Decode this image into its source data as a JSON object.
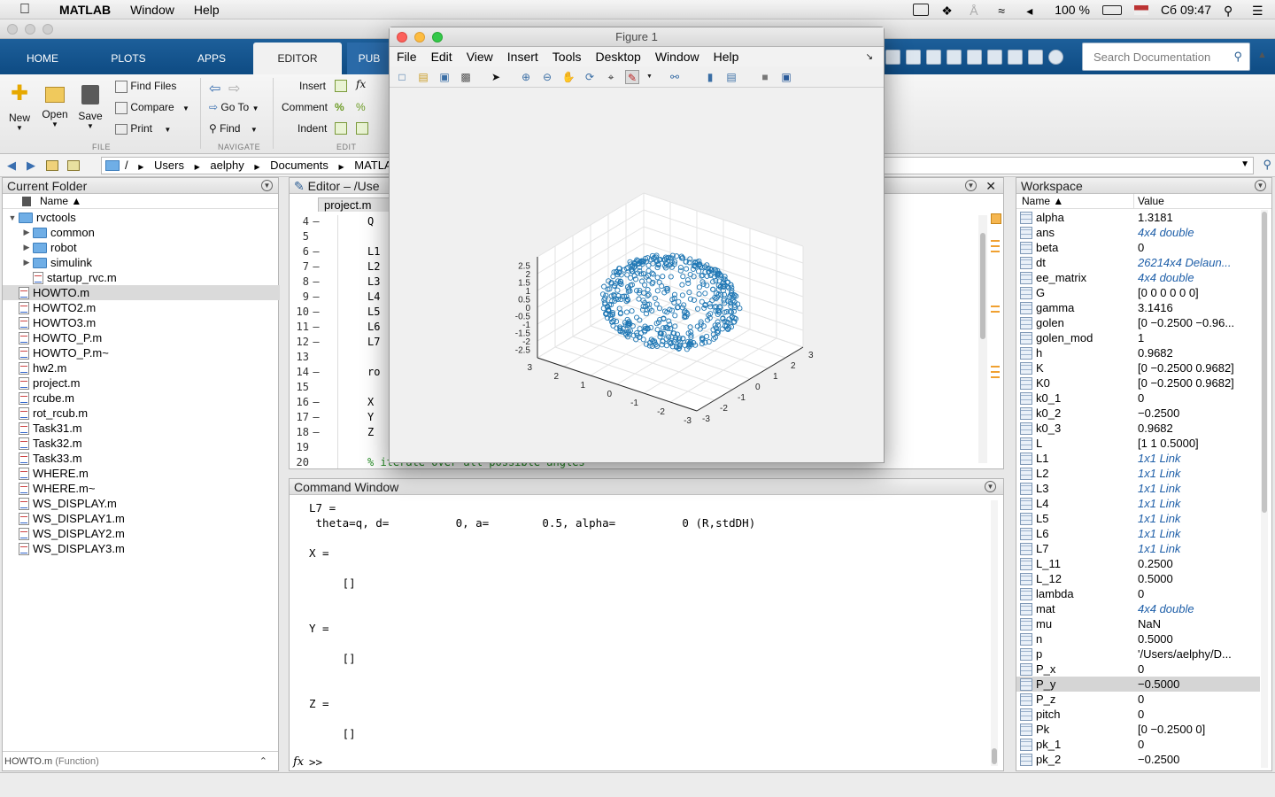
{
  "menubar": {
    "app": "MATLAB",
    "items": [
      "Window",
      "Help"
    ],
    "battery": "100 %",
    "clock": "Сб 09:47"
  },
  "toolstrip": {
    "tabs": [
      "HOME",
      "PLOTS",
      "APPS",
      "EDITOR",
      "PUB"
    ],
    "active_tab": "EDITOR",
    "file": {
      "new": "New",
      "open": "Open",
      "save": "Save",
      "find_files": "Find Files",
      "compare": "Compare",
      "print": "Print",
      "label": "FILE"
    },
    "navigate": {
      "goto": "Go To",
      "find": "Find",
      "label": "NAVIGATE"
    },
    "edit": {
      "insert": "Insert",
      "comment": "Comment",
      "indent": "Indent",
      "label": "EDIT"
    },
    "search_placeholder": "Search Documentation"
  },
  "address": {
    "crumbs": [
      "/",
      "Users",
      "aelphy",
      "Documents",
      "MATLAB"
    ]
  },
  "current_folder": {
    "title": "Current Folder",
    "column": "Name ▲",
    "items": [
      {
        "name": "rvctools",
        "kind": "folder",
        "indent": 0,
        "expanded": true
      },
      {
        "name": "common",
        "kind": "folder",
        "indent": 1
      },
      {
        "name": "robot",
        "kind": "folder",
        "indent": 1
      },
      {
        "name": "simulink",
        "kind": "folder",
        "indent": 1
      },
      {
        "name": "startup_rvc.m",
        "kind": "file",
        "indent": 1
      },
      {
        "name": "HOWTO.m",
        "kind": "file",
        "indent": 0,
        "selected": true
      },
      {
        "name": "HOWTO2.m",
        "kind": "file",
        "indent": 0
      },
      {
        "name": "HOWTO3.m",
        "kind": "file",
        "indent": 0
      },
      {
        "name": "HOWTO_P.m",
        "kind": "file",
        "indent": 0
      },
      {
        "name": "HOWTO_P.m~",
        "kind": "file",
        "indent": 0
      },
      {
        "name": "hw2.m",
        "kind": "file",
        "indent": 0
      },
      {
        "name": "project.m",
        "kind": "file",
        "indent": 0
      },
      {
        "name": "rcube.m",
        "kind": "file",
        "indent": 0
      },
      {
        "name": "rot_rcub.m",
        "kind": "file",
        "indent": 0
      },
      {
        "name": "Task31.m",
        "kind": "file",
        "indent": 0
      },
      {
        "name": "Task32.m",
        "kind": "file",
        "indent": 0
      },
      {
        "name": "Task33.m",
        "kind": "file",
        "indent": 0
      },
      {
        "name": "WHERE.m",
        "kind": "file",
        "indent": 0
      },
      {
        "name": "WHERE.m~",
        "kind": "file",
        "indent": 0
      },
      {
        "name": "WS_DISPLAY.m",
        "kind": "file",
        "indent": 0
      },
      {
        "name": "WS_DISPLAY1.m",
        "kind": "file",
        "indent": 0
      },
      {
        "name": "WS_DISPLAY2.m",
        "kind": "file",
        "indent": 0
      },
      {
        "name": "WS_DISPLAY3.m",
        "kind": "file",
        "indent": 0
      }
    ],
    "details": "HOWTO.m",
    "details_kind": "(Function)"
  },
  "editor": {
    "title": "Editor – /Use",
    "tab": "project.m",
    "lines": [
      {
        "n": "4",
        "dash": "–",
        "code": "Q"
      },
      {
        "n": "5",
        "dash": "",
        "code": ""
      },
      {
        "n": "6",
        "dash": "–",
        "code": "L1"
      },
      {
        "n": "7",
        "dash": "–",
        "code": "L2"
      },
      {
        "n": "8",
        "dash": "–",
        "code": "L3"
      },
      {
        "n": "9",
        "dash": "–",
        "code": "L4"
      },
      {
        "n": "10",
        "dash": "–",
        "code": "L5"
      },
      {
        "n": "11",
        "dash": "–",
        "code": "L6"
      },
      {
        "n": "12",
        "dash": "–",
        "code": "L7"
      },
      {
        "n": "13",
        "dash": "",
        "code": ""
      },
      {
        "n": "14",
        "dash": "–",
        "code": "ro"
      },
      {
        "n": "15",
        "dash": "",
        "code": ""
      },
      {
        "n": "16",
        "dash": "–",
        "code": "X"
      },
      {
        "n": "17",
        "dash": "–",
        "code": "Y"
      },
      {
        "n": "18",
        "dash": "–",
        "code": "Z"
      },
      {
        "n": "19",
        "dash": "",
        "code": ""
      },
      {
        "n": "20",
        "dash": "",
        "code": "% iterate over all possible angles"
      }
    ]
  },
  "command_window": {
    "title": "Command Window",
    "text": "L7 =\n theta=q, d=          0, a=        0.5, alpha=          0 (R,stdDH)\n\nX =\n\n     []\n\n\nY =\n\n     []\n\n\nZ =\n\n     []",
    "prompt": ">>"
  },
  "workspace": {
    "title": "Workspace",
    "columns": [
      "Name ▲",
      "Value"
    ],
    "rows": [
      {
        "name": "alpha",
        "value": "1.3181"
      },
      {
        "name": "ans",
        "value": "4x4 double",
        "italic": true
      },
      {
        "name": "beta",
        "value": "0"
      },
      {
        "name": "dt",
        "value": "26214x4 Delaun...",
        "italic": true
      },
      {
        "name": "ee_matrix",
        "value": "4x4 double",
        "italic": true
      },
      {
        "name": "G",
        "value": "[0 0 0 0 0 0]"
      },
      {
        "name": "gamma",
        "value": "3.1416"
      },
      {
        "name": "golen",
        "value": "[0 −0.2500 −0.96..."
      },
      {
        "name": "golen_mod",
        "value": "1"
      },
      {
        "name": "h",
        "value": "0.9682"
      },
      {
        "name": "K",
        "value": "[0 −0.2500 0.9682]"
      },
      {
        "name": "K0",
        "value": "[0 −0.2500 0.9682]"
      },
      {
        "name": "k0_1",
        "value": "0"
      },
      {
        "name": "k0_2",
        "value": "−0.2500"
      },
      {
        "name": "k0_3",
        "value": "0.9682"
      },
      {
        "name": "L",
        "value": "[1 1 0.5000]"
      },
      {
        "name": "L1",
        "value": "1x1 Link",
        "italic": true
      },
      {
        "name": "L2",
        "value": "1x1 Link",
        "italic": true
      },
      {
        "name": "L3",
        "value": "1x1 Link",
        "italic": true
      },
      {
        "name": "L4",
        "value": "1x1 Link",
        "italic": true
      },
      {
        "name": "L5",
        "value": "1x1 Link",
        "italic": true
      },
      {
        "name": "L6",
        "value": "1x1 Link",
        "italic": true
      },
      {
        "name": "L7",
        "value": "1x1 Link",
        "italic": true
      },
      {
        "name": "L_11",
        "value": "0.2500"
      },
      {
        "name": "L_12",
        "value": "0.5000"
      },
      {
        "name": "lambda",
        "value": "0"
      },
      {
        "name": "mat",
        "value": "4x4 double",
        "italic": true
      },
      {
        "name": "mu",
        "value": "NaN"
      },
      {
        "name": "n",
        "value": "0.5000"
      },
      {
        "name": "p",
        "value": "'/Users/aelphy/D..."
      },
      {
        "name": "P_x",
        "value": "0"
      },
      {
        "name": "P_y",
        "value": "−0.5000",
        "selected": true
      },
      {
        "name": "P_z",
        "value": "0"
      },
      {
        "name": "pitch",
        "value": "0"
      },
      {
        "name": "Pk",
        "value": "[0 −0.2500 0]"
      },
      {
        "name": "pk_1",
        "value": "0"
      },
      {
        "name": "pk_2",
        "value": "−0.2500"
      }
    ]
  },
  "figure": {
    "title": "Figure 1",
    "menu": [
      "File",
      "Edit",
      "View",
      "Insert",
      "Tools",
      "Desktop",
      "Window",
      "Help"
    ],
    "tools": [
      "new-figure",
      "open",
      "save",
      "print",
      "pointer",
      "zoom-in",
      "zoom-out",
      "pan",
      "rotate",
      "data-cursor",
      "brush",
      "link",
      "colorbar",
      "legend",
      "hide-tools",
      "show-tools"
    ],
    "marker_color": "#1f77b4"
  },
  "chart_data": {
    "type": "scatter",
    "subtype": "scatter3",
    "grid": true,
    "zlim": [
      -3,
      3
    ],
    "zticks": [
      "2.5",
      "2",
      "1.5",
      "1",
      "0.5",
      "0",
      "-0.5",
      "-1",
      "-1.5",
      "-2",
      "-2.5",
      "3"
    ],
    "xticks_left": [
      "3",
      "2",
      "1",
      "0",
      "-1",
      "-2",
      "-3"
    ],
    "xticks_right": [
      "-3",
      "-2",
      "-1",
      "0",
      "1",
      "2",
      "3"
    ],
    "description_note": "",
    "point_count": 520
  }
}
